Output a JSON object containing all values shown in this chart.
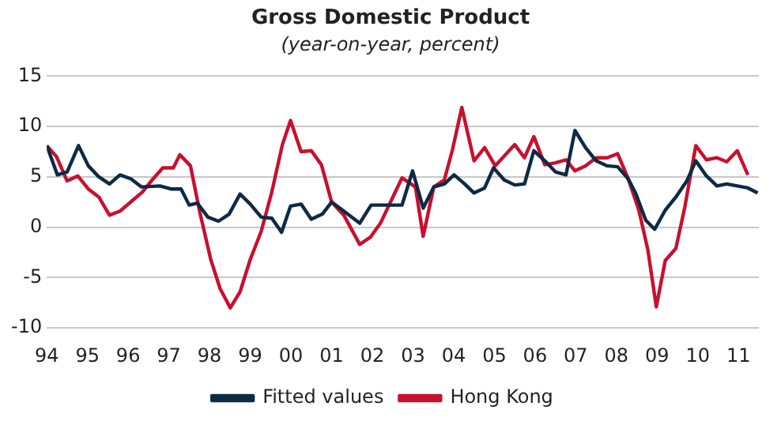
{
  "chart_data": {
    "type": "line",
    "title": "Gross Domestic Product",
    "subtitle": "(year-on-year, percent)",
    "xlim": [
      1994,
      2011.5
    ],
    "xticks": [
      {
        "value": 1994,
        "label": "94"
      },
      {
        "value": 1995,
        "label": "95"
      },
      {
        "value": 1996,
        "label": "96"
      },
      {
        "value": 1997,
        "label": "97"
      },
      {
        "value": 1998,
        "label": "98"
      },
      {
        "value": 1999,
        "label": "99"
      },
      {
        "value": 2000,
        "label": "00"
      },
      {
        "value": 2001,
        "label": "01"
      },
      {
        "value": 2002,
        "label": "02"
      },
      {
        "value": 2003,
        "label": "03"
      },
      {
        "value": 2004,
        "label": "04"
      },
      {
        "value": 2005,
        "label": "05"
      },
      {
        "value": 2006,
        "label": "06"
      },
      {
        "value": 2007,
        "label": "07"
      },
      {
        "value": 2008,
        "label": "08"
      },
      {
        "value": 2009,
        "label": "09"
      },
      {
        "value": 2010,
        "label": "10"
      },
      {
        "value": 2011,
        "label": "11"
      }
    ],
    "ylim": [
      -10,
      15
    ],
    "yticks": [
      -10,
      -5,
      0,
      5,
      10,
      15
    ],
    "grid": "y",
    "legend": "bottom",
    "marker": "none",
    "line_style": "solid",
    "series": [
      {
        "name": "Fitted values",
        "color": "#0d2a46",
        "x": [
          1994.0,
          1994.26,
          1994.5,
          1994.78,
          1995.02,
          1995.28,
          1995.54,
          1995.8,
          1996.07,
          1996.33,
          1996.78,
          1997.05,
          1997.3,
          1997.5,
          1997.7,
          1997.96,
          1998.22,
          1998.48,
          1998.75,
          1999.0,
          1999.27,
          1999.53,
          1999.77,
          1999.99,
          2000.25,
          2000.5,
          2000.77,
          2001.0,
          2001.3,
          2001.69,
          2001.97,
          2002.47,
          2002.73,
          2002.99,
          2003.25,
          2003.51,
          2003.77,
          2004.01,
          2004.27,
          2004.5,
          2004.76,
          2004.98,
          2005.24,
          2005.5,
          2005.74,
          2005.97,
          2006.24,
          2006.5,
          2006.76,
          2006.98,
          2007.24,
          2007.5,
          2007.77,
          2008.03,
          2008.29,
          2008.48,
          2008.72,
          2008.94,
          2009.2,
          2009.46,
          2009.73,
          2009.95,
          2010.21,
          2010.47,
          2010.71,
          2010.97,
          2011.23,
          2011.47
        ],
        "values": [
          8.1,
          5.2,
          5.5,
          8.1,
          6.1,
          5.0,
          4.3,
          5.2,
          4.8,
          4.0,
          4.1,
          3.8,
          3.8,
          2.2,
          2.4,
          1.0,
          0.6,
          1.3,
          3.3,
          2.3,
          1.0,
          0.9,
          -0.5,
          2.1,
          2.3,
          0.8,
          1.3,
          2.5,
          1.6,
          0.4,
          2.2,
          2.2,
          2.2,
          5.6,
          1.9,
          4.0,
          4.3,
          5.2,
          4.3,
          3.4,
          3.9,
          5.9,
          4.7,
          4.2,
          4.3,
          7.6,
          6.6,
          5.5,
          5.2,
          9.6,
          7.9,
          6.6,
          6.1,
          6.0,
          4.8,
          3.3,
          0.7,
          -0.2,
          1.7,
          3.0,
          4.6,
          6.6,
          5.1,
          4.1,
          4.3,
          4.1,
          3.9,
          3.4
        ]
      },
      {
        "name": "Hong Kong",
        "color": "#c8102e",
        "x": [
          1994.0,
          1994.24,
          1994.5,
          1994.76,
          1995.02,
          1995.28,
          1995.54,
          1995.8,
          1996.09,
          1996.35,
          1996.59,
          1996.85,
          1997.11,
          1997.27,
          1997.53,
          1997.76,
          1998.03,
          1998.26,
          1998.51,
          1998.75,
          1999.0,
          1999.27,
          1999.53,
          1999.79,
          1999.99,
          2000.25,
          2000.5,
          2000.75,
          2001.0,
          2001.3,
          2001.69,
          2001.95,
          2002.2,
          2002.47,
          2002.73,
          2003.06,
          2003.25,
          2003.51,
          2003.77,
          2003.97,
          2004.2,
          2004.5,
          2004.76,
          2005.02,
          2005.5,
          2005.74,
          2005.97,
          2006.24,
          2006.5,
          2006.76,
          2006.98,
          2007.24,
          2007.5,
          2007.77,
          2008.03,
          2008.29,
          2008.55,
          2008.77,
          2008.98,
          2009.2,
          2009.46,
          2009.68,
          2009.95,
          2010.21,
          2010.47,
          2010.71,
          2010.97,
          2011.23
        ],
        "values": [
          8.1,
          7.0,
          4.6,
          5.1,
          3.8,
          3.0,
          1.2,
          1.6,
          2.6,
          3.5,
          4.7,
          5.9,
          5.9,
          7.2,
          6.1,
          1.5,
          -3.2,
          -6.1,
          -8.0,
          -6.4,
          -3.2,
          -0.4,
          3.5,
          8.2,
          10.6,
          7.5,
          7.6,
          6.2,
          2.5,
          1.2,
          -1.7,
          -1.0,
          0.4,
          2.7,
          4.9,
          4.0,
          -0.9,
          4.0,
          4.7,
          7.7,
          11.9,
          6.6,
          7.9,
          6.1,
          8.2,
          6.9,
          9.0,
          6.2,
          6.4,
          6.7,
          5.6,
          6.1,
          6.9,
          6.9,
          7.3,
          4.8,
          1.7,
          -2.2,
          -7.9,
          -3.3,
          -2.1,
          2.0,
          8.1,
          6.7,
          6.9,
          6.5,
          7.6,
          5.2
        ]
      }
    ]
  }
}
